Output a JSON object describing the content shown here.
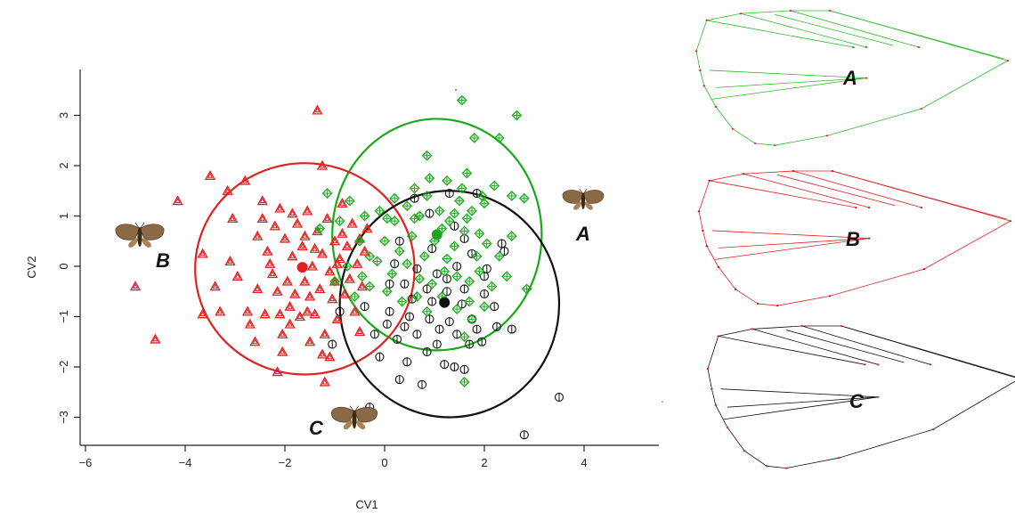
{
  "chart_data": [
    {
      "type": "scatter",
      "title": "",
      "xlabel": "CV1",
      "ylabel": "CV2",
      "xlim": [
        -6.1,
        5.4
      ],
      "ylim": [
        -3.6,
        3.9
      ],
      "xticks": [
        -6,
        -4,
        -2,
        0,
        2,
        4
      ],
      "yticks": [
        -3,
        -2,
        -1,
        0,
        1,
        2,
        3
      ],
      "tick_labels_x": [
        "−6",
        "−4",
        "−2",
        "0",
        "2",
        "4"
      ],
      "tick_labels_y": [
        "−3",
        "−2",
        "−1",
        "0",
        "1",
        "2",
        "3"
      ],
      "grid": false,
      "legend": "none",
      "group_labels": [
        {
          "text": "A",
          "x": 4.0,
          "y": 0.55
        },
        {
          "text": "B",
          "x": -4.5,
          "y": 0.1
        },
        {
          "text": "C",
          "x": -1.4,
          "y": -3.2
        }
      ],
      "series": [
        {
          "group": "A",
          "marker": "diamond",
          "color": "#1aa81a",
          "mean": [
            1.05,
            0.63
          ],
          "ellipse": {
            "cx": 1.05,
            "cy": 0.63,
            "rx": 2.1,
            "ry": 2.3
          },
          "points": [
            [
              -1.15,
              1.45
            ],
            [
              -0.7,
              1.3
            ],
            [
              -0.4,
              1.0
            ],
            [
              -0.1,
              1.1
            ],
            [
              0.2,
              0.9
            ],
            [
              0.45,
              1.2
            ],
            [
              0.7,
              1.0
            ],
            [
              0.85,
              1.4
            ],
            [
              1.1,
              1.1
            ],
            [
              1.3,
              0.9
            ],
            [
              1.5,
              1.3
            ],
            [
              1.75,
              1.1
            ],
            [
              2.0,
              1.25
            ],
            [
              0.9,
              1.75
            ],
            [
              1.25,
              1.7
            ],
            [
              1.55,
              1.55
            ],
            [
              1.65,
              1.85
            ],
            [
              1.95,
              1.4
            ],
            [
              0.85,
              2.2
            ],
            [
              1.8,
              2.55
            ],
            [
              1.55,
              3.3
            ],
            [
              2.3,
              2.55
            ],
            [
              2.65,
              3.0
            ],
            [
              2.55,
              1.4
            ],
            [
              2.8,
              1.35
            ],
            [
              -0.9,
              0.9
            ],
            [
              -0.5,
              0.5
            ],
            [
              -0.3,
              0.2
            ],
            [
              0.0,
              0.5
            ],
            [
              0.3,
              0.3
            ],
            [
              0.55,
              0.6
            ],
            [
              0.8,
              0.2
            ],
            [
              1.0,
              0.5
            ],
            [
              1.25,
              0.15
            ],
            [
              1.4,
              0.4
            ],
            [
              1.6,
              0.7
            ],
            [
              1.85,
              0.2
            ],
            [
              2.05,
              0.45
            ],
            [
              2.3,
              0.2
            ],
            [
              2.55,
              0.6
            ],
            [
              -0.75,
              0.0
            ],
            [
              -0.45,
              -0.2
            ],
            [
              -0.15,
              0.1
            ],
            [
              0.15,
              -0.15
            ],
            [
              0.45,
              0.05
            ],
            [
              0.7,
              -0.25
            ],
            [
              0.95,
              -0.35
            ],
            [
              1.2,
              -0.1
            ],
            [
              1.45,
              -0.2
            ],
            [
              1.7,
              -0.3
            ],
            [
              1.9,
              -0.1
            ],
            [
              2.15,
              -0.4
            ],
            [
              -1.0,
              -0.3
            ],
            [
              -0.6,
              -0.6
            ],
            [
              -0.3,
              -0.4
            ],
            [
              0.05,
              -0.5
            ],
            [
              0.35,
              -0.7
            ],
            [
              0.65,
              -0.6
            ],
            [
              0.85,
              -0.9
            ],
            [
              1.15,
              -0.6
            ],
            [
              1.45,
              -0.85
            ],
            [
              1.7,
              -0.7
            ],
            [
              2.0,
              -0.8
            ],
            [
              1.75,
              -1.05
            ],
            [
              1.6,
              -1.4
            ],
            [
              1.6,
              -2.3
            ],
            [
              0.6,
              0.95
            ],
            [
              1.15,
              0.75
            ],
            [
              1.65,
              0.95
            ],
            [
              2.2,
              1.6
            ],
            [
              2.85,
              -0.45
            ],
            [
              1.4,
              1.05
            ],
            [
              0.2,
              1.35
            ],
            [
              -1.3,
              0.75
            ],
            [
              2.45,
              -0.2
            ],
            [
              0.05,
              0.95
            ],
            [
              1.9,
              0.65
            ],
            [
              0.6,
              1.55
            ]
          ]
        },
        {
          "group": "B",
          "marker": "triangle",
          "color": "#e02020",
          "mean": [
            -1.65,
            -0.02
          ],
          "ellipse": {
            "cx": -1.6,
            "cy": -0.05,
            "rx": 2.2,
            "ry": 2.1
          },
          "points": [
            [
              -5.0,
              -0.4
            ],
            [
              -4.6,
              -1.45
            ],
            [
              -4.15,
              1.3
            ],
            [
              -3.5,
              1.8
            ],
            [
              -3.65,
              0.25
            ],
            [
              -3.65,
              -0.95
            ],
            [
              -3.4,
              -0.4
            ],
            [
              -3.3,
              -0.9
            ],
            [
              -3.15,
              1.5
            ],
            [
              -3.1,
              0.1
            ],
            [
              -3.05,
              0.95
            ],
            [
              -2.95,
              -0.2
            ],
            [
              -2.8,
              1.7
            ],
            [
              -2.75,
              -0.9
            ],
            [
              -2.6,
              -1.5
            ],
            [
              -2.55,
              0.6
            ],
            [
              -2.55,
              -0.45
            ],
            [
              -2.45,
              1.3
            ],
            [
              -2.4,
              -0.95
            ],
            [
              -2.35,
              0.3
            ],
            [
              -2.25,
              -0.15
            ],
            [
              -2.2,
              0.8
            ],
            [
              -2.15,
              -0.5
            ],
            [
              -2.1,
              1.15
            ],
            [
              -2.05,
              -1.7
            ],
            [
              -2.0,
              0.55
            ],
            [
              -1.95,
              -0.3
            ],
            [
              -1.9,
              -1.15
            ],
            [
              -1.85,
              0.2
            ],
            [
              -1.8,
              -0.55
            ],
            [
              -1.75,
              0.85
            ],
            [
              -1.7,
              -1.0
            ],
            [
              -1.65,
              0.4
            ],
            [
              -1.6,
              -0.3
            ],
            [
              -1.55,
              1.1
            ],
            [
              -1.5,
              -0.6
            ],
            [
              -1.45,
              0.0
            ],
            [
              -1.4,
              -0.95
            ],
            [
              -1.35,
              0.7
            ],
            [
              -1.3,
              -0.45
            ],
            [
              -1.25,
              0.25
            ],
            [
              -1.2,
              -1.35
            ],
            [
              -1.15,
              0.95
            ],
            [
              -1.1,
              -0.1
            ],
            [
              -1.05,
              -0.65
            ],
            [
              -1.0,
              0.5
            ],
            [
              -0.95,
              -1.05
            ],
            [
              -0.9,
              0.15
            ],
            [
              -0.85,
              1.25
            ],
            [
              -0.8,
              -0.55
            ],
            [
              -0.75,
              0.4
            ],
            [
              -0.7,
              -0.25
            ],
            [
              -0.65,
              0.85
            ],
            [
              -0.6,
              -0.9
            ],
            [
              -0.55,
              0.05
            ],
            [
              -0.5,
              0.55
            ],
            [
              -0.45,
              -0.4
            ],
            [
              -0.4,
              0.3
            ],
            [
              -1.35,
              3.1
            ],
            [
              -1.25,
              2.0
            ],
            [
              -2.05,
              -1.35
            ],
            [
              -1.5,
              -1.5
            ],
            [
              -1.25,
              -1.75
            ],
            [
              -1.2,
              -2.3
            ],
            [
              -2.15,
              -2.1
            ],
            [
              -1.9,
              -0.8
            ],
            [
              -2.3,
              0.05
            ],
            [
              -1.6,
              0.6
            ],
            [
              -0.5,
              -1.3
            ],
            [
              -1.0,
              -0.3
            ],
            [
              -0.85,
              0.65
            ],
            [
              -2.45,
              0.95
            ],
            [
              -1.4,
              0.35
            ],
            [
              -1.85,
              1.05
            ],
            [
              -0.35,
              0.75
            ],
            [
              -1.1,
              -1.8
            ],
            [
              -2.7,
              -1.15
            ],
            [
              -0.95,
              0.05
            ],
            [
              -1.55,
              -0.9
            ],
            [
              -2.1,
              -0.95
            ]
          ]
        },
        {
          "group": "C",
          "marker": "circle",
          "color": "#111111",
          "mean": [
            1.2,
            -0.72
          ],
          "ellipse": {
            "cx": 1.3,
            "cy": -0.75,
            "rx": 2.2,
            "ry": 2.25
          },
          "points": [
            [
              0.6,
              1.35
            ],
            [
              1.3,
              1.45
            ],
            [
              1.85,
              1.45
            ],
            [
              0.9,
              1.05
            ],
            [
              1.4,
              0.8
            ],
            [
              2.35,
              0.45
            ],
            [
              2.4,
              0.3
            ],
            [
              0.3,
              0.5
            ],
            [
              0.95,
              0.35
            ],
            [
              1.75,
              0.25
            ],
            [
              0.2,
              0.05
            ],
            [
              0.65,
              -0.05
            ],
            [
              1.05,
              -0.15
            ],
            [
              1.45,
              0.0
            ],
            [
              2.05,
              -0.05
            ],
            [
              0.4,
              -0.35
            ],
            [
              0.85,
              -0.45
            ],
            [
              1.25,
              -0.5
            ],
            [
              1.6,
              -0.45
            ],
            [
              2.0,
              -0.55
            ],
            [
              -0.9,
              -0.9
            ],
            [
              -0.4,
              -0.8
            ],
            [
              0.1,
              -0.9
            ],
            [
              0.5,
              -1.0
            ],
            [
              0.9,
              -1.05
            ],
            [
              1.3,
              -1.1
            ],
            [
              1.75,
              -1.05
            ],
            [
              2.25,
              -1.2
            ],
            [
              -0.2,
              -1.35
            ],
            [
              0.25,
              -1.45
            ],
            [
              0.65,
              -1.35
            ],
            [
              1.05,
              -1.55
            ],
            [
              1.45,
              -1.35
            ],
            [
              1.95,
              -1.5
            ],
            [
              -0.1,
              -1.8
            ],
            [
              0.45,
              -1.9
            ],
            [
              0.85,
              -1.7
            ],
            [
              1.2,
              -1.95
            ],
            [
              1.6,
              -2.05
            ],
            [
              0.3,
              -2.25
            ],
            [
              0.75,
              -2.35
            ],
            [
              1.4,
              -2.0
            ],
            [
              -0.3,
              -2.8
            ],
            [
              3.5,
              -2.6
            ],
            [
              2.8,
              -3.35
            ],
            [
              2.55,
              -1.25
            ],
            [
              1.85,
              -1.25
            ],
            [
              -1.05,
              -1.55
            ],
            [
              0.1,
              -0.35
            ],
            [
              0.55,
              -0.65
            ],
            [
              1.55,
              -0.75
            ],
            [
              2.2,
              -0.8
            ],
            [
              0.05,
              -1.15
            ],
            [
              0.95,
              -0.7
            ],
            [
              1.25,
              -0.25
            ],
            [
              1.7,
              -1.55
            ],
            [
              0.4,
              -1.2
            ],
            [
              1.1,
              -1.25
            ],
            [
              2.0,
              -0.2
            ],
            [
              1.6,
              0.55
            ]
          ]
        }
      ]
    },
    {
      "type": "diagram",
      "panel": "wing-shapes",
      "shapes": [
        {
          "label": "A",
          "color": "#2db82d",
          "landmark_color": "#e02020"
        },
        {
          "label": "B",
          "color": "#e02020",
          "landmark_color": "#b01010"
        },
        {
          "label": "C",
          "color": "#111111",
          "landmark_color": "#e02020"
        }
      ]
    }
  ]
}
